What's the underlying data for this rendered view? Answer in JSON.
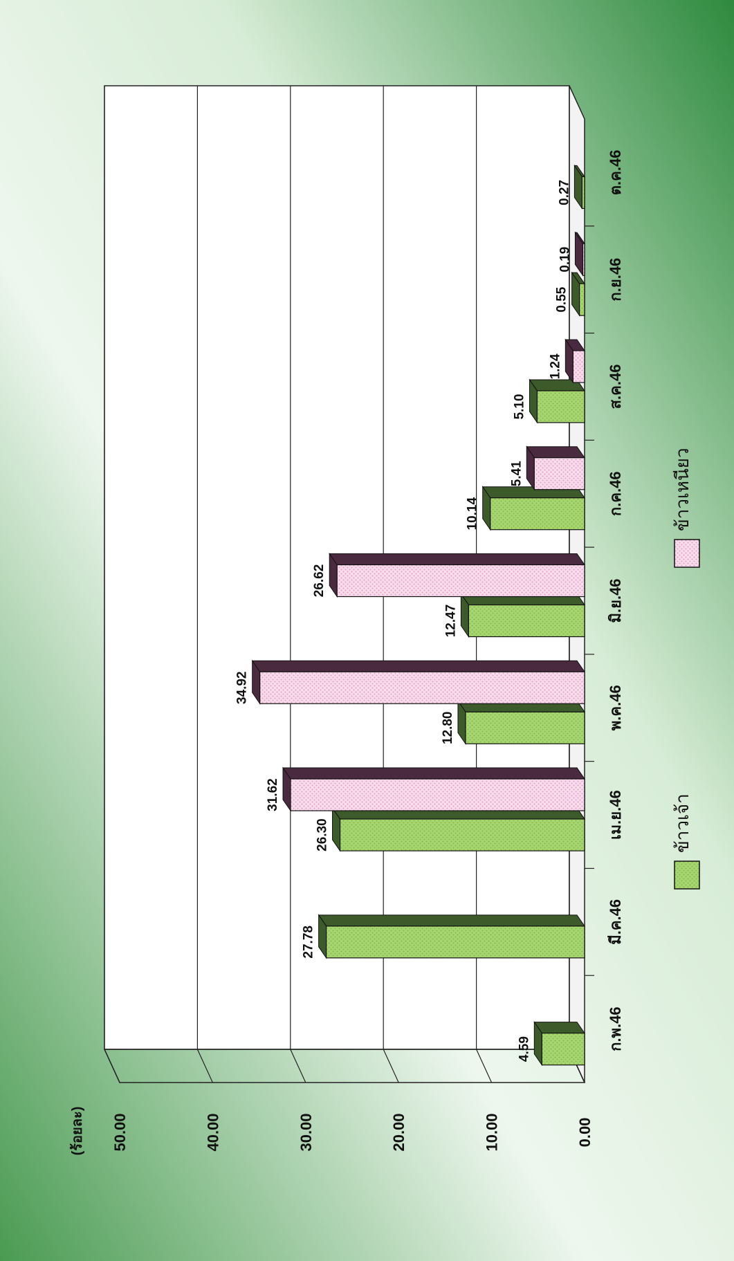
{
  "colors": {
    "series_1": "#9fd36a",
    "series_2": "#f6d3e6",
    "frame_border": "#3f7a3f",
    "background_gradient": [
      "#2f8f3f",
      "#e8f4e8"
    ]
  },
  "chart_data": {
    "type": "bar",
    "orientation": "rotated-90-clockwise",
    "unit_label": "(ร้อยละ)",
    "categories": [
      "ก.พ.46",
      "มี.ค.46",
      "เม.ย.46",
      "พ.ค.46",
      "มิ.ย.46",
      "ก.ค.46",
      "ส.ค.46",
      "ก.ย.46",
      "ต.ค.46"
    ],
    "series": [
      {
        "name": "ข้าวเจ้า",
        "values": [
          4.59,
          27.78,
          26.3,
          12.8,
          12.47,
          10.14,
          5.1,
          0.55,
          0.27
        ]
      },
      {
        "name": "ข้าวเหนียว",
        "values": [
          null,
          null,
          31.62,
          34.92,
          26.62,
          5.41,
          1.24,
          0.19,
          null
        ]
      }
    ],
    "data_labels": {
      "series_1": [
        "4.59",
        "27.78",
        "26.30",
        "12.80",
        "12.47",
        "10.14",
        "5.10",
        "0.55",
        "0.27"
      ],
      "series_2": [
        "",
        "",
        "31.62",
        "34.92",
        "26.62",
        "5.41",
        "1.24",
        "0.19",
        ""
      ]
    },
    "yticks": [
      "0.00",
      "10.00",
      "20.00",
      "30.00",
      "40.00",
      "50.00"
    ],
    "ylim": [
      0,
      50
    ],
    "grid": true,
    "legend_position": "bottom",
    "style": "3d-bars"
  }
}
